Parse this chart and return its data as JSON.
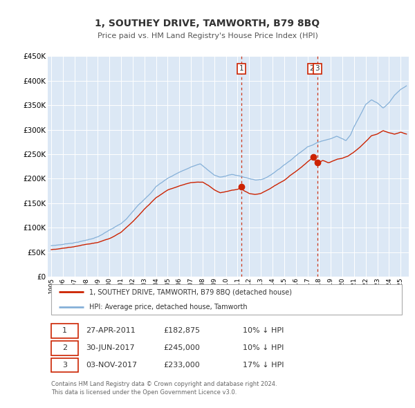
{
  "title": "1, SOUTHEY DRIVE, TAMWORTH, B79 8BQ",
  "subtitle": "Price paid vs. HM Land Registry's House Price Index (HPI)",
  "title_fontsize": 10,
  "subtitle_fontsize": 8,
  "background_color": "#ffffff",
  "plot_bg_color": "#dce8f5",
  "grid_color": "#ffffff",
  "hpi_color": "#85b0d8",
  "price_color": "#cc2200",
  "ylim": [
    0,
    450000
  ],
  "yticks": [
    0,
    50000,
    100000,
    150000,
    200000,
    250000,
    300000,
    350000,
    400000,
    450000
  ],
  "ytick_labels": [
    "£0",
    "£50K",
    "£100K",
    "£150K",
    "£200K",
    "£250K",
    "£300K",
    "£350K",
    "£400K",
    "£450K"
  ],
  "xmin": 1994.7,
  "xmax": 2025.7,
  "xticks": [
    1995,
    1996,
    1997,
    1998,
    1999,
    2000,
    2001,
    2002,
    2003,
    2004,
    2005,
    2006,
    2007,
    2008,
    2009,
    2010,
    2011,
    2012,
    2013,
    2014,
    2015,
    2016,
    2017,
    2018,
    2019,
    2020,
    2021,
    2022,
    2023,
    2024,
    2025
  ],
  "transaction_dates": [
    2011.32,
    2017.49,
    2017.84
  ],
  "transaction_prices": [
    182875,
    245000,
    233000
  ],
  "transaction_labels": [
    "1",
    "2",
    "3"
  ],
  "vline_dates": [
    2011.32,
    2017.84
  ],
  "legend_entries": [
    "1, SOUTHEY DRIVE, TAMWORTH, B79 8BQ (detached house)",
    "HPI: Average price, detached house, Tamworth"
  ],
  "table_rows": [
    [
      "1",
      "27-APR-2011",
      "£182,875",
      "10% ↓ HPI"
    ],
    [
      "2",
      "30-JUN-2017",
      "£245,000",
      "10% ↓ HPI"
    ],
    [
      "3",
      "03-NOV-2017",
      "£233,000",
      "17% ↓ HPI"
    ]
  ],
  "footnote": "Contains HM Land Registry data © Crown copyright and database right 2024.\nThis data is licensed under the Open Government Licence v3.0.",
  "hpi_waypoints_x": [
    1995.0,
    1996.0,
    1997.0,
    1998.0,
    1999.0,
    2000.0,
    2001.0,
    2001.5,
    2002.5,
    2003.5,
    2004.0,
    2005.0,
    2006.0,
    2007.0,
    2007.8,
    2008.5,
    2009.0,
    2009.5,
    2010.0,
    2010.5,
    2011.0,
    2011.5,
    2012.0,
    2012.5,
    2013.0,
    2013.5,
    2014.0,
    2014.5,
    2015.0,
    2015.5,
    2016.0,
    2016.5,
    2017.0,
    2017.5,
    2018.0,
    2018.5,
    2019.0,
    2019.5,
    2020.0,
    2020.3,
    2020.7,
    2021.0,
    2021.5,
    2022.0,
    2022.5,
    2023.0,
    2023.5,
    2024.0,
    2024.5,
    2025.0,
    2025.5
  ],
  "hpi_waypoints_y": [
    63000,
    66000,
    70000,
    75000,
    82000,
    95000,
    108000,
    118000,
    148000,
    170000,
    185000,
    202000,
    215000,
    225000,
    232000,
    218000,
    208000,
    205000,
    207000,
    210000,
    208000,
    205000,
    202000,
    200000,
    200000,
    205000,
    213000,
    222000,
    232000,
    240000,
    250000,
    260000,
    270000,
    274000,
    280000,
    284000,
    287000,
    292000,
    287000,
    283000,
    295000,
    312000,
    335000,
    358000,
    368000,
    362000,
    352000,
    362000,
    378000,
    388000,
    395000
  ],
  "price_waypoints_x": [
    1995.0,
    1996.0,
    1997.0,
    1998.0,
    1999.0,
    2000.0,
    2001.0,
    2002.0,
    2003.0,
    2004.0,
    2005.0,
    2006.0,
    2007.0,
    2008.0,
    2008.5,
    2009.0,
    2009.5,
    2010.0,
    2010.5,
    2011.0,
    2011.32,
    2011.5,
    2012.0,
    2012.5,
    2013.0,
    2013.5,
    2014.0,
    2014.5,
    2015.0,
    2015.5,
    2016.0,
    2016.5,
    2017.0,
    2017.49,
    2017.84,
    2018.0,
    2018.3,
    2018.5,
    2018.8,
    2019.0,
    2019.5,
    2020.0,
    2020.5,
    2021.0,
    2021.5,
    2022.0,
    2022.5,
    2023.0,
    2023.5,
    2024.0,
    2024.5,
    2025.0,
    2025.5
  ],
  "price_waypoints_y": [
    55000,
    58000,
    62000,
    66000,
    70000,
    78000,
    90000,
    112000,
    138000,
    162000,
    178000,
    186000,
    193000,
    194000,
    187000,
    178000,
    172000,
    174000,
    177000,
    179000,
    182875,
    177000,
    171000,
    169000,
    171000,
    177000,
    184000,
    191000,
    198000,
    208000,
    216000,
    226000,
    236000,
    245000,
    233000,
    234000,
    239000,
    237000,
    234000,
    236000,
    241000,
    243000,
    248000,
    256000,
    266000,
    278000,
    290000,
    293000,
    300000,
    296000,
    293000,
    297000,
    293000
  ]
}
